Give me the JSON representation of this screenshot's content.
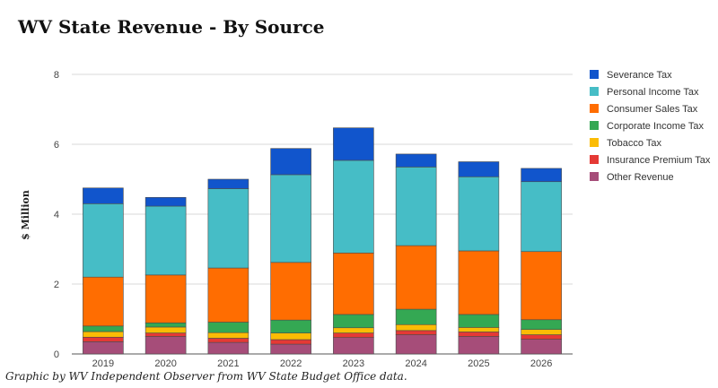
{
  "chart_data": {
    "type": "bar",
    "stacked": true,
    "title": "WV State Revenue - By Source",
    "ylabel": "$ Million",
    "xlabel": "",
    "ylim": [
      0,
      8
    ],
    "yticks": [
      0,
      2,
      4,
      6,
      8
    ],
    "grid": true,
    "legend_position": "right",
    "categories": [
      "2019",
      "2020",
      "2021",
      "2022",
      "2023",
      "2024",
      "2025",
      "2026"
    ],
    "series": [
      {
        "name": "Other Revenue",
        "color": "#a64d79",
        "values": [
          0.35,
          0.5,
          0.33,
          0.28,
          0.47,
          0.55,
          0.5,
          0.42
        ]
      },
      {
        "name": "Insurance Premium Tax",
        "color": "#e53935",
        "values": [
          0.13,
          0.1,
          0.12,
          0.13,
          0.13,
          0.12,
          0.13,
          0.13
        ]
      },
      {
        "name": "Tobacco Tax",
        "color": "#fbbc04",
        "values": [
          0.16,
          0.17,
          0.16,
          0.19,
          0.15,
          0.17,
          0.13,
          0.15
        ]
      },
      {
        "name": "Corporate Income Tax",
        "color": "#34a853",
        "values": [
          0.16,
          0.12,
          0.3,
          0.37,
          0.38,
          0.44,
          0.37,
          0.28
        ]
      },
      {
        "name": "Consumer Sales Tax",
        "color": "#ff6d01",
        "values": [
          1.4,
          1.37,
          1.55,
          1.65,
          1.76,
          1.82,
          1.82,
          1.95
        ]
      },
      {
        "name": "Personal Income Tax",
        "color": "#46bdc6",
        "values": [
          2.1,
          1.97,
          2.27,
          2.51,
          2.65,
          2.25,
          2.12,
          2.0
        ]
      },
      {
        "name": "Severance Tax",
        "color": "#1155cc",
        "values": [
          0.45,
          0.25,
          0.27,
          0.75,
          0.93,
          0.37,
          0.43,
          0.38
        ]
      }
    ]
  },
  "caption": "Graphic by WV Independent Observer from WV State Budget Office data."
}
